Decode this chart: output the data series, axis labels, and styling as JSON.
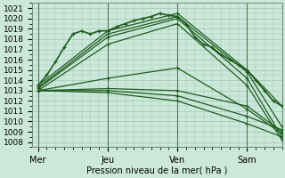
{
  "xlabel": "Pression niveau de la mer( hPa )",
  "ylim": [
    1007.5,
    1021.5
  ],
  "yticks": [
    1008,
    1009,
    1010,
    1011,
    1012,
    1013,
    1014,
    1015,
    1016,
    1017,
    1018,
    1019,
    1020,
    1021
  ],
  "xtick_labels": [
    "Mer",
    "Jeu",
    "Ven",
    "Sam"
  ],
  "xtick_positions": [
    0,
    48,
    96,
    144
  ],
  "xlim": [
    -4,
    168
  ],
  "bg_color": "#cce8da",
  "grid_color": "#9dc8b4",
  "line_color": "#1e5c1e",
  "vline_positions": [
    0,
    48,
    96,
    144
  ],
  "series": [
    [
      0,
      1013.5,
      48,
      1018.8,
      96,
      1020.5,
      144,
      1015.0,
      168,
      1011.5
    ],
    [
      0,
      1013.3,
      48,
      1018.5,
      96,
      1020.2,
      144,
      1014.8,
      168,
      1009.5
    ],
    [
      0,
      1013.2,
      48,
      1018.2,
      96,
      1020.0,
      144,
      1014.2,
      168,
      1008.5
    ],
    [
      0,
      1013.0,
      48,
      1017.5,
      96,
      1019.5,
      144,
      1013.5,
      168,
      1008.2
    ],
    [
      0,
      1013.0,
      48,
      1014.2,
      96,
      1015.2,
      144,
      1011.2,
      168,
      1008.8
    ],
    [
      0,
      1013.0,
      48,
      1013.2,
      96,
      1013.0,
      144,
      1011.5,
      168,
      1009.0
    ],
    [
      0,
      1013.0,
      48,
      1013.0,
      96,
      1012.5,
      144,
      1010.5,
      168,
      1009.2
    ],
    [
      0,
      1013.0,
      48,
      1012.8,
      96,
      1012.0,
      144,
      1009.8,
      168,
      1008.5
    ]
  ],
  "obs_detail": [
    [
      0,
      1013.5
    ],
    [
      6,
      1014.5
    ],
    [
      12,
      1015.8
    ],
    [
      18,
      1017.2
    ],
    [
      24,
      1018.5
    ],
    [
      30,
      1018.8
    ],
    [
      36,
      1018.5
    ],
    [
      42,
      1018.8
    ],
    [
      48,
      1018.8
    ],
    [
      54,
      1019.2
    ],
    [
      60,
      1019.5
    ],
    [
      66,
      1019.8
    ],
    [
      72,
      1020.0
    ],
    [
      78,
      1020.2
    ],
    [
      84,
      1020.5
    ],
    [
      90,
      1020.3
    ],
    [
      96,
      1020.2
    ],
    [
      102,
      1019.5
    ],
    [
      108,
      1018.2
    ],
    [
      114,
      1017.5
    ],
    [
      120,
      1017.2
    ],
    [
      126,
      1016.5
    ],
    [
      132,
      1016.0
    ],
    [
      138,
      1015.5
    ],
    [
      144,
      1015.0
    ],
    [
      150,
      1014.0
    ],
    [
      156,
      1013.0
    ],
    [
      162,
      1012.0
    ],
    [
      168,
      1011.5
    ]
  ]
}
